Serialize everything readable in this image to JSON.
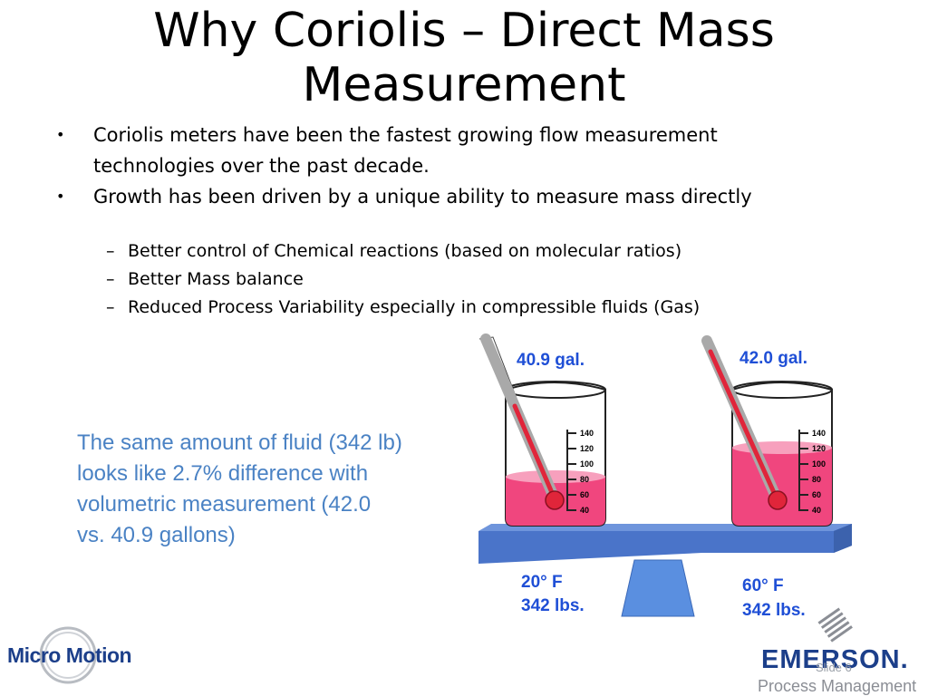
{
  "slide": {
    "title_line1": "Why Coriolis – Direct Mass",
    "title_line2": "Measurement",
    "bullets": [
      {
        "marker": "•",
        "text_line1": "Coriolis meters have been the fastest growing flow measurement",
        "text_line2": "technologies over the past decade."
      },
      {
        "marker": "•",
        "text": "Growth has been driven by a unique ability to measure mass directly"
      }
    ],
    "sub_bullets": [
      {
        "marker": "–",
        "text": "Better control of Chemical reactions (based on molecular ratios)"
      },
      {
        "marker": "–",
        "text": "Better Mass balance"
      },
      {
        "marker": "–",
        "text": "Reduced Process Variability especially in compressible fluids (Gas)"
      }
    ],
    "note_lines": [
      "The same amount of fluid (342 lb)",
      "looks like 2.7% difference with",
      "volumetric measurement (42.0",
      "vs. 40.9 gallons)"
    ],
    "left_beaker": {
      "volume": "40.9 gal.",
      "temp": "20° F",
      "weight": "342 lbs."
    },
    "right_beaker": {
      "volume": "42.0 gal.",
      "temp": "60° F",
      "weight": "342 lbs."
    },
    "scale_ticks": [
      "140",
      "120",
      "100",
      "80",
      "60",
      "40"
    ],
    "slide_number": "Slide 6"
  },
  "logos": {
    "micro_motion": "Micro Motion",
    "emerson": "EMERSON.",
    "emerson_sub": "Process Management"
  },
  "colors": {
    "note_text": "#4a82c4",
    "label_text": "#1f4fd6",
    "liquid": "#f0467e",
    "beam": "#4a74c9",
    "brand": "#1c3f8a"
  }
}
